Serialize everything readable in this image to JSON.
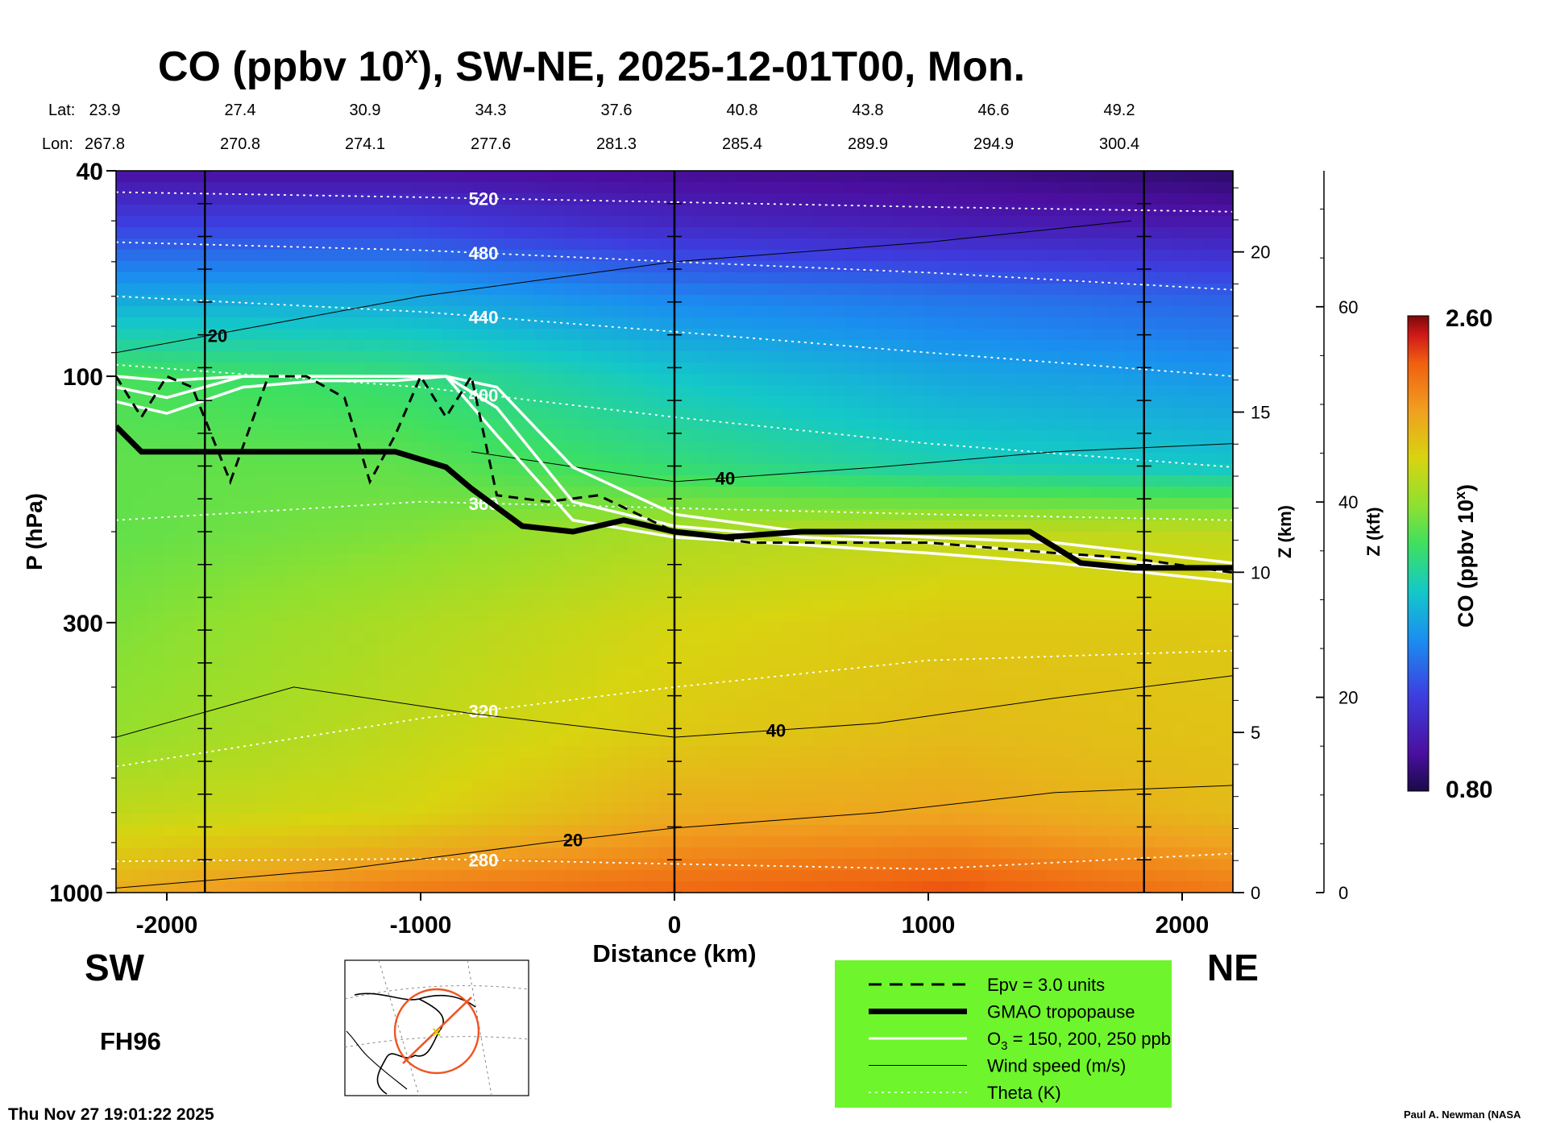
{
  "figure": {
    "title_main": "CO (ppbv 10",
    "title_sup": "x",
    "title_rest": "), SW-NE, 2025-12-01T00, Mon.",
    "lat_label": "Lat:",
    "lon_label": "Lon:",
    "lats": [
      "23.9",
      "27.4",
      "30.9",
      "34.3",
      "37.6",
      "40.8",
      "43.8",
      "46.6",
      "49.2"
    ],
    "lons": [
      "267.8",
      "270.8",
      "274.1",
      "277.6",
      "281.3",
      "285.4",
      "289.9",
      "294.9",
      "300.4"
    ],
    "sw_label": "SW",
    "ne_label": "NE",
    "fh_label": "FH96",
    "timestamp": "Thu Nov 27 19:01:22 2025",
    "credit": "Paul A. Newman (NASA"
  },
  "chart_data": {
    "type": "heatmap",
    "title": "CO (ppbv 10^x), SW-NE, 2025-12-01T00, Mon.",
    "xlabel": "Distance (km)",
    "ylabel": "P (hPa)",
    "y2label": "Z (km)",
    "y3label": "Z (kft)",
    "xlim": [
      -2200,
      2200
    ],
    "ylim_hpa": [
      1000,
      40
    ],
    "x_ticks": [
      "-2000",
      "-1000",
      "0",
      "1000",
      "2000"
    ],
    "x_tick_values": [
      -2000,
      -1000,
      0,
      1000,
      2000
    ],
    "p_ticks": [
      "1000",
      "300",
      "100",
      "40"
    ],
    "p_tick_values": [
      1000,
      300,
      100,
      40
    ],
    "zkm_ticks": [
      "0",
      "5",
      "10",
      "15",
      "20"
    ],
    "zkm_tick_values": [
      0,
      5,
      10,
      15,
      20
    ],
    "zkft_ticks": [
      "0",
      "20",
      "40",
      "60"
    ],
    "zkft_tick_values": [
      0,
      20,
      40,
      60
    ],
    "colorbar": {
      "label": "CO (ppbv 10",
      "label_sup": "x",
      "label_end": ")",
      "min_label": "0.80",
      "max_label": "2.60",
      "min": 0.8,
      "max": 2.6
    },
    "section_marker_km": [
      -1850,
      0,
      1850
    ],
    "co_field": {
      "x_km": [
        -2200,
        -1100,
        0,
        1100,
        2200
      ],
      "p_hpa": [
        1000,
        700,
        500,
        300,
        200,
        150,
        100,
        70,
        50,
        40
      ],
      "log10_co": [
        [
          2.2,
          2.35,
          2.4,
          2.45,
          2.35
        ],
        [
          2.0,
          2.05,
          2.2,
          2.22,
          2.15
        ],
        [
          1.9,
          2.0,
          2.1,
          2.15,
          2.12
        ],
        [
          1.85,
          1.95,
          2.05,
          2.1,
          2.1
        ],
        [
          1.8,
          1.85,
          1.95,
          2.0,
          2.0
        ],
        [
          1.8,
          1.8,
          1.7,
          1.6,
          1.55
        ],
        [
          1.75,
          1.7,
          1.55,
          1.45,
          1.4
        ],
        [
          1.45,
          1.45,
          1.35,
          1.3,
          1.25
        ],
        [
          1.15,
          1.15,
          1.05,
          1.0,
          0.98
        ],
        [
          0.95,
          0.95,
          0.92,
          0.9,
          0.85
        ]
      ]
    },
    "theta_contours": [
      {
        "label": "280",
        "x_km": [
          -2200,
          -1000,
          0,
          1000,
          2200
        ],
        "p_hpa": [
          870,
          860,
          880,
          900,
          840
        ]
      },
      {
        "label": "320",
        "x_km": [
          -2200,
          -1000,
          0,
          1000,
          2200
        ],
        "p_hpa": [
          570,
          460,
          400,
          355,
          340
        ]
      },
      {
        "label": "360",
        "x_km": [
          -2200,
          -1000,
          0,
          1000,
          2200
        ],
        "p_hpa": [
          190,
          175,
          180,
          185,
          190
        ]
      },
      {
        "label": "400",
        "x_km": [
          -2200,
          -1000,
          0,
          1000,
          2200
        ],
        "p_hpa": [
          95,
          105,
          120,
          135,
          150
        ]
      },
      {
        "label": "440",
        "x_km": [
          -2200,
          -1000,
          0,
          1000,
          2200
        ],
        "p_hpa": [
          70,
          75,
          82,
          90,
          100
        ]
      },
      {
        "label": "480",
        "x_km": [
          -2200,
          -1000,
          0,
          1000,
          2200
        ],
        "p_hpa": [
          55,
          57,
          60,
          63,
          68
        ]
      },
      {
        "label": "520",
        "x_km": [
          -2200,
          -1000,
          0,
          1000,
          2200
        ],
        "p_hpa": [
          44,
          45,
          46,
          47,
          48
        ]
      }
    ],
    "wind_contours": [
      {
        "label": "20",
        "x_km": [
          -2200,
          -1300,
          -500,
          0,
          800,
          1500,
          2200
        ],
        "p_hpa": [
          980,
          900,
          800,
          750,
          700,
          640,
          620
        ]
      },
      {
        "label": "40",
        "x_km": [
          -2200,
          -1500,
          -800,
          0,
          800,
          1500,
          2200
        ],
        "p_hpa": [
          500,
          400,
          450,
          500,
          470,
          420,
          380
        ]
      },
      {
        "label": "40",
        "x_km": [
          -800,
          0,
          800,
          1500,
          2200
        ],
        "p_hpa": [
          140,
          160,
          150,
          140,
          135
        ]
      },
      {
        "label": "20",
        "x_km": [
          -2200,
          -1000,
          0,
          1000,
          1800
        ],
        "p_hpa": [
          90,
          70,
          60,
          55,
          50
        ]
      }
    ],
    "tropopause_hpa": {
      "x_km": [
        -2200,
        -2100,
        -1800,
        -1500,
        -1100,
        -900,
        -800,
        -600,
        -400,
        -200,
        0,
        200,
        500,
        1000,
        1400,
        1600,
        1800,
        2200
      ],
      "p_hpa": [
        125,
        140,
        140,
        140,
        140,
        150,
        165,
        195,
        200,
        190,
        200,
        205,
        200,
        200,
        200,
        230,
        235,
        235
      ]
    },
    "epv_3_hpa": {
      "x_km": [
        -2200,
        -2100,
        -2000,
        -1900,
        -1750,
        -1600,
        -1450,
        -1300,
        -1200,
        -1100,
        -1000,
        -900,
        -800,
        -700,
        -500,
        -300,
        0,
        300,
        600,
        1000,
        1500,
        1800,
        2200
      ],
      "p_hpa": [
        100,
        120,
        100,
        105,
        160,
        100,
        100,
        110,
        160,
        130,
        100,
        120,
        100,
        170,
        175,
        170,
        200,
        210,
        210,
        210,
        220,
        225,
        240
      ]
    },
    "o3_contours_hpa": [
      {
        "label": "150 ppb",
        "x_km": [
          -2200,
          -2000,
          -1700,
          -1400,
          -1100,
          -900,
          -700,
          -400,
          0,
          500,
          1000,
          1500,
          2200
        ],
        "p_hpa": [
          112,
          118,
          105,
          102,
          102,
          100,
          105,
          150,
          185,
          200,
          205,
          210,
          230
        ]
      },
      {
        "label": "200 ppb",
        "x_km": [
          -2200,
          -2000,
          -1700,
          -1400,
          -1100,
          -900,
          -700,
          -400,
          0,
          500,
          1000,
          1500,
          2200
        ],
        "p_hpa": [
          105,
          110,
          100,
          100,
          100,
          100,
          115,
          175,
          195,
          205,
          210,
          220,
          240
        ]
      },
      {
        "label": "250 ppb",
        "x_km": [
          -2200,
          -2000,
          -1700,
          -1400,
          -1100,
          -900,
          -700,
          -400,
          0,
          500,
          1000,
          1500,
          2200
        ],
        "p_hpa": [
          100,
          102,
          100,
          100,
          100,
          100,
          130,
          190,
          205,
          212,
          220,
          230,
          250
        ]
      }
    ],
    "legend": [
      {
        "style": "dashed-black",
        "text": "Epv = 3.0 units"
      },
      {
        "style": "thick-black",
        "text": "GMAO tropopause"
      },
      {
        "style": "white",
        "text": "O",
        "sub": "3",
        "text_end": " = 150, 200, 250 ppb"
      },
      {
        "style": "thin-black",
        "text": "Wind speed (m/s)"
      },
      {
        "style": "dotted-white",
        "text": "Theta (K)"
      }
    ]
  }
}
